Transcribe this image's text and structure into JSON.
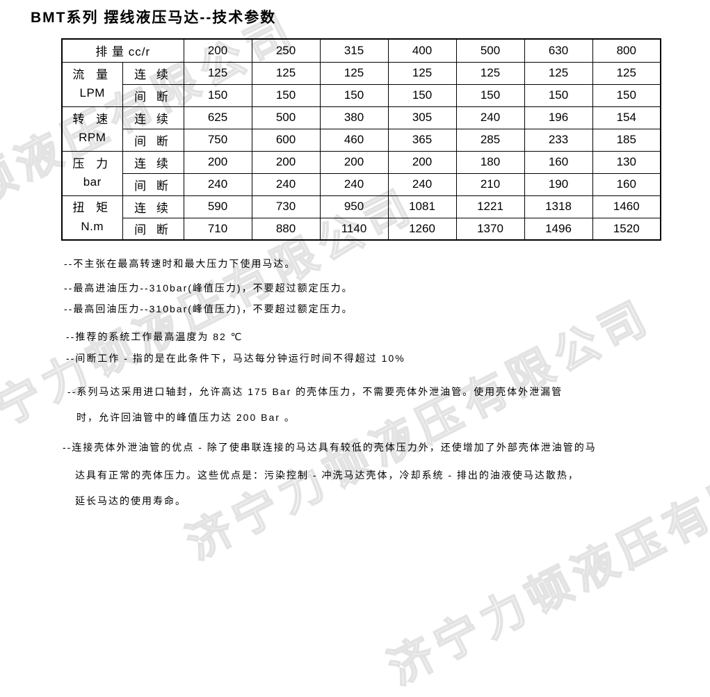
{
  "title": "BMT系列 摆线液压马达--技术参数",
  "watermark": {
    "text": "济宁力顿液压有限公司",
    "color": "#e3e3e3"
  },
  "table": {
    "header_label": "排 量 cc/r",
    "displacements": [
      "200",
      "250",
      "315",
      "400",
      "500",
      "630",
      "800"
    ],
    "row_groups": [
      {
        "name": "流 量",
        "unit": "LPM",
        "rows": [
          {
            "mode": "连 续",
            "values": [
              "125",
              "125",
              "125",
              "125",
              "125",
              "125",
              "125"
            ]
          },
          {
            "mode": "间 断",
            "values": [
              "150",
              "150",
              "150",
              "150",
              "150",
              "150",
              "150"
            ]
          }
        ]
      },
      {
        "name": "转 速",
        "unit": "RPM",
        "rows": [
          {
            "mode": "连 续",
            "values": [
              "625",
              "500",
              "380",
              "305",
              "240",
              "196",
              "154"
            ]
          },
          {
            "mode": "间 断",
            "values": [
              "750",
              "600",
              "460",
              "365",
              "285",
              "233",
              "185"
            ]
          }
        ]
      },
      {
        "name": "压 力",
        "unit": "bar",
        "rows": [
          {
            "mode": "连 续",
            "values": [
              "200",
              "200",
              "200",
              "200",
              "180",
              "160",
              "130"
            ]
          },
          {
            "mode": "间 断",
            "values": [
              "240",
              "240",
              "240",
              "240",
              "210",
              "190",
              "160"
            ]
          }
        ]
      },
      {
        "name": "扭 矩",
        "unit": "N.m",
        "rows": [
          {
            "mode": "连 续",
            "values": [
              "590",
              "730",
              "950",
              "1081",
              "1221",
              "1318",
              "1460"
            ]
          },
          {
            "mode": "间 断",
            "values": [
              "710",
              "880",
              "1140",
              "1260",
              "1370",
              "1496",
              "1520"
            ]
          }
        ]
      }
    ]
  },
  "notes": [
    "--不主张在最高转速时和最大压力下使用马达。",
    "--最高进油压力--310bar(峰值压力)，不要超过额定压力。",
    "--最高回油压力--310bar(峰值压力)，不要超过额定压力。",
    "--推荐的系统工作最高温度为 82 ℃",
    "--间断工作 - 指的是在此条件下，马达每分钟运行时间不得超过 10%",
    "--系列马达采用进口轴封，允许高达 175 Bar 的壳体压力，不需要壳体外泄油管。使用壳体外泄漏管",
    "时，允许回油管中的峰值压力达 200 Bar 。",
    "--连接壳体外泄油管的优点 - 除了使串联连接的马达具有较低的壳体压力外，还使增加了外部壳体泄油管的马",
    "达具有正常的壳体压力。这些优点是：污染控制 - 冲洗马达壳体，冷却系统 - 排出的油液使马达散热，",
    "延长马达的使用寿命。"
  ]
}
